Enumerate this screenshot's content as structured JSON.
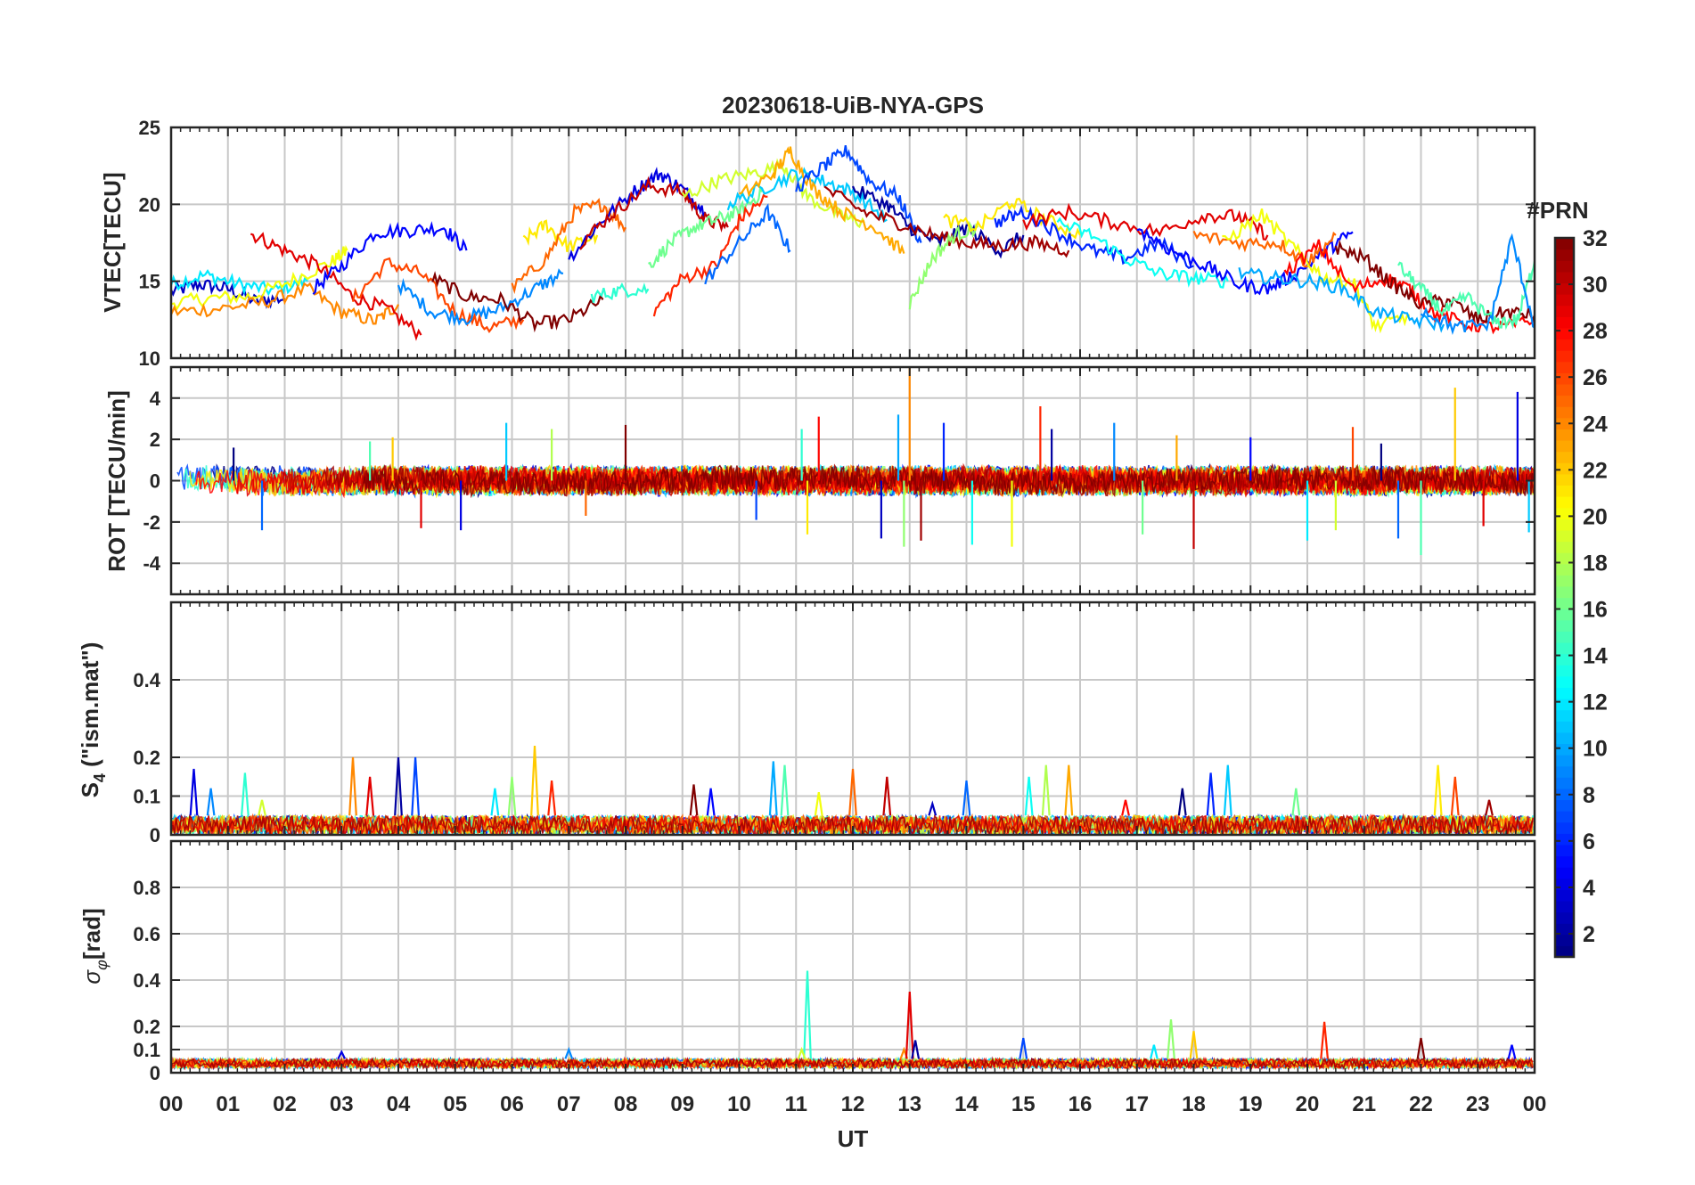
{
  "figure": {
    "title": "20230618-UiB-NYA-GPS",
    "xlabel": "UT"
  },
  "x_ticks": [
    "00",
    "01",
    "02",
    "03",
    "04",
    "05",
    "06",
    "07",
    "08",
    "09",
    "10",
    "11",
    "12",
    "13",
    "14",
    "15",
    "16",
    "17",
    "18",
    "19",
    "20",
    "21",
    "22",
    "23",
    "00"
  ],
  "colorbar": {
    "title": "#PRN",
    "range": [
      1,
      32
    ],
    "ticks": [
      2,
      4,
      6,
      8,
      10,
      12,
      14,
      16,
      18,
      20,
      22,
      24,
      26,
      28,
      30,
      32
    ],
    "colormap": "jet"
  },
  "chart_data": [
    {
      "type": "line",
      "ylabel": "VTEC[TECU]",
      "xlim": [
        0,
        24
      ],
      "ylim": [
        10,
        25
      ],
      "yticks": [
        10,
        15,
        20,
        25
      ],
      "grid": true,
      "description_series": "one line per GPS satellite (PRN), colored by PRN",
      "series": [
        {
          "prn": 3,
          "x": [
            0.0,
            0.5,
            1.0,
            1.5,
            2.0
          ],
          "y": [
            14.3,
            14.8,
            14.5,
            13.7,
            13.9
          ]
        },
        {
          "prn": 12,
          "x": [
            0.0,
            0.6,
            1.2,
            1.8,
            2.4
          ],
          "y": [
            14.8,
            15.4,
            14.8,
            14.4,
            15.0
          ]
        },
        {
          "prn": 20,
          "x": [
            0.0,
            0.7,
            1.4,
            2.1,
            2.8,
            3.1
          ],
          "y": [
            13.6,
            13.9,
            14.0,
            15.0,
            16.2,
            17.0
          ]
        },
        {
          "prn": 24,
          "x": [
            0.0,
            0.8,
            1.6,
            2.4,
            3.0,
            3.6,
            4.0
          ],
          "y": [
            13.0,
            13.2,
            13.6,
            14.5,
            13.0,
            12.4,
            13.5
          ]
        },
        {
          "prn": 29,
          "x": [
            1.4,
            2.0,
            2.6,
            3.2,
            3.8,
            4.4
          ],
          "y": [
            18.1,
            17.0,
            16.0,
            14.0,
            13.2,
            11.5
          ]
        },
        {
          "prn": 5,
          "x": [
            2.5,
            3.0,
            3.6,
            4.2,
            4.8,
            5.2
          ],
          "y": [
            14.5,
            16.0,
            18.2,
            18.3,
            18.5,
            17.0
          ]
        },
        {
          "prn": 26,
          "x": [
            3.2,
            3.8,
            4.4,
            5.0,
            5.6,
            6.2
          ],
          "y": [
            13.8,
            16.2,
            15.5,
            13.0,
            12.0,
            12.5
          ]
        },
        {
          "prn": 9,
          "x": [
            4.0,
            4.6,
            5.2,
            5.8,
            6.4,
            6.9
          ],
          "y": [
            14.8,
            13.0,
            12.6,
            13.2,
            14.5,
            15.5
          ]
        },
        {
          "prn": 32,
          "x": [
            4.6,
            5.2,
            5.8,
            6.4,
            7.0,
            7.6
          ],
          "y": [
            15.2,
            14.0,
            13.8,
            12.2,
            12.5,
            13.8
          ]
        },
        {
          "prn": 21,
          "x": [
            6.2,
            6.6,
            7.0,
            7.5
          ],
          "y": [
            17.6,
            18.7,
            17.2,
            18.0
          ]
        },
        {
          "prn": 25,
          "x": [
            6.0,
            6.6,
            7.1,
            7.6,
            8.0
          ],
          "y": [
            14.5,
            16.5,
            19.5,
            20.0,
            18.5
          ]
        },
        {
          "prn": 4,
          "x": [
            7.0,
            7.6,
            8.2,
            8.6,
            9.0,
            9.4
          ],
          "y": [
            16.5,
            19.0,
            21.0,
            22.0,
            21.0,
            19.5
          ]
        },
        {
          "prn": 30,
          "x": [
            7.2,
            7.8,
            8.4,
            9.0,
            9.4,
            9.8
          ],
          "y": [
            17.5,
            19.5,
            21.2,
            20.8,
            19.0,
            18.5
          ]
        },
        {
          "prn": 14,
          "x": [
            7.4,
            7.9,
            8.4
          ],
          "y": [
            14.0,
            14.4,
            14.5
          ]
        },
        {
          "prn": 16,
          "x": [
            8.4,
            8.8,
            9.2,
            9.6,
            10.0,
            10.4
          ],
          "y": [
            16.0,
            17.5,
            18.5,
            19.0,
            19.5,
            20.8
          ]
        },
        {
          "prn": 27,
          "x": [
            8.5,
            9.0,
            9.6,
            10.0,
            10.5
          ],
          "y": [
            13.0,
            15.2,
            16.0,
            19.0,
            20.5
          ]
        },
        {
          "prn": 19,
          "x": [
            9.0,
            9.6,
            10.2,
            10.8,
            11.2,
            11.8,
            12.2
          ],
          "y": [
            20.5,
            21.5,
            22.0,
            22.5,
            20.5,
            19.2,
            18.8
          ]
        },
        {
          "prn": 8,
          "x": [
            9.4,
            10.0,
            10.5,
            10.9
          ],
          "y": [
            15.0,
            17.5,
            19.5,
            17.0
          ]
        },
        {
          "prn": 11,
          "x": [
            9.8,
            10.4,
            11.0,
            11.5,
            12.0,
            12.6
          ],
          "y": [
            20.0,
            21.0,
            22.0,
            21.5,
            20.8,
            19.0
          ]
        },
        {
          "prn": 23,
          "x": [
            10.0,
            10.6,
            10.9,
            11.3,
            11.8,
            12.4,
            12.9
          ],
          "y": [
            20.5,
            22.0,
            23.5,
            21.0,
            19.5,
            18.5,
            16.8
          ]
        },
        {
          "prn": 7,
          "x": [
            11.0,
            11.5,
            11.9,
            12.3,
            12.8,
            13.2
          ],
          "y": [
            21.0,
            22.5,
            23.5,
            21.5,
            20.5,
            17.5
          ]
        },
        {
          "prn": 2,
          "x": [
            12.0,
            12.6,
            13.0,
            13.5,
            14.0,
            14.6,
            15.0
          ],
          "y": [
            21.0,
            20.0,
            18.5,
            17.5,
            18.5,
            17.0,
            18.0
          ]
        },
        {
          "prn": 31,
          "x": [
            11.5,
            12.2,
            12.8,
            13.4,
            14.0,
            14.6,
            15.2,
            15.8
          ],
          "y": [
            21.0,
            19.5,
            18.8,
            18.0,
            17.5,
            17.3,
            17.5,
            17.0
          ]
        },
        {
          "prn": 17,
          "x": [
            13.0,
            13.4,
            13.8,
            14.2
          ],
          "y": [
            13.5,
            16.5,
            18.0,
            18.5
          ]
        },
        {
          "prn": 21,
          "x": [
            13.6,
            14.2,
            14.8,
            15.4,
            16.0
          ],
          "y": [
            19.0,
            18.5,
            20.2,
            19.0,
            18.0
          ]
        },
        {
          "prn": 6,
          "x": [
            14.5,
            15.0,
            15.6,
            16.2,
            16.8,
            17.4,
            18.0
          ],
          "y": [
            18.8,
            19.5,
            18.2,
            17.0,
            16.5,
            17.5,
            16.0
          ]
        },
        {
          "prn": 29,
          "x": [
            15.0,
            15.8,
            16.6,
            17.4,
            18.2,
            18.8,
            19.3
          ],
          "y": [
            18.8,
            19.5,
            18.8,
            18.2,
            19.3,
            19.2,
            18.0
          ]
        },
        {
          "prn": 13,
          "x": [
            15.6,
            16.2,
            16.8,
            17.4,
            18.0,
            18.6
          ],
          "y": [
            18.8,
            18.0,
            16.5,
            15.5,
            15.2,
            15.0
          ]
        },
        {
          "prn": 5,
          "x": [
            17.0,
            17.6,
            18.2,
            18.8,
            19.3,
            19.8,
            20.4,
            20.8
          ],
          "y": [
            18.5,
            17.0,
            16.0,
            14.8,
            14.5,
            15.5,
            17.2,
            18.2
          ]
        },
        {
          "prn": 25,
          "x": [
            18.0,
            18.8,
            19.5,
            20.0,
            20.5
          ],
          "y": [
            18.0,
            17.5,
            17.5,
            16.2,
            18.0
          ]
        },
        {
          "prn": 20,
          "x": [
            18.5,
            19.2,
            19.8,
            20.3,
            20.8,
            21.2,
            21.8
          ],
          "y": [
            17.5,
            19.3,
            17.0,
            15.2,
            15.0,
            12.0,
            12.8
          ]
        },
        {
          "prn": 10,
          "x": [
            18.8,
            19.4,
            20.0,
            20.6,
            21.2,
            21.8,
            22.4
          ],
          "y": [
            15.5,
            15.2,
            15.0,
            14.6,
            13.0,
            12.5,
            12.2
          ]
        },
        {
          "prn": 28,
          "x": [
            19.6,
            20.2,
            20.8,
            21.4,
            21.8,
            22.2,
            22.8,
            23.4,
            24.0
          ],
          "y": [
            15.5,
            17.3,
            14.5,
            15.2,
            14.5,
            13.0,
            12.2,
            12.0,
            12.5
          ]
        },
        {
          "prn": 32,
          "x": [
            20.5,
            21.0,
            21.5,
            22.0,
            22.5,
            23.0,
            23.5,
            24.0
          ],
          "y": [
            17.2,
            16.5,
            14.8,
            13.5,
            13.8,
            12.5,
            13.0,
            12.8
          ]
        },
        {
          "prn": 15,
          "x": [
            21.6,
            22.0,
            22.4,
            22.8,
            23.3,
            23.7,
            24.0
          ],
          "y": [
            16.0,
            14.5,
            13.0,
            14.0,
            12.3,
            12.5,
            16.3
          ]
        },
        {
          "prn": 9,
          "x": [
            22.0,
            22.6,
            23.2,
            23.6,
            24.0
          ],
          "y": [
            13.2,
            12.0,
            12.2,
            17.8,
            12.0
          ]
        }
      ]
    },
    {
      "type": "line",
      "ylabel": "ROT [TECU/min]",
      "xlim": [
        0,
        24
      ],
      "ylim": [
        -5.5,
        5.5
      ],
      "yticks": [
        -4,
        -2,
        0,
        2,
        4
      ],
      "grid": true,
      "noise_band": [
        -1.0,
        1.0
      ],
      "spikes": [
        {
          "x": 1.1,
          "y": 1.6
        },
        {
          "x": 1.6,
          "y": -2.4
        },
        {
          "x": 3.5,
          "y": 1.9
        },
        {
          "x": 3.9,
          "y": 2.1
        },
        {
          "x": 4.4,
          "y": -2.3
        },
        {
          "x": 5.1,
          "y": -2.4
        },
        {
          "x": 5.9,
          "y": 2.8
        },
        {
          "x": 6.7,
          "y": 2.5
        },
        {
          "x": 7.3,
          "y": -1.7
        },
        {
          "x": 8.0,
          "y": 2.7
        },
        {
          "x": 10.3,
          "y": -1.9
        },
        {
          "x": 11.1,
          "y": 2.5
        },
        {
          "x": 11.2,
          "y": -2.6
        },
        {
          "x": 11.4,
          "y": 3.1
        },
        {
          "x": 12.5,
          "y": -2.8
        },
        {
          "x": 12.8,
          "y": 3.2
        },
        {
          "x": 12.9,
          "y": -3.2
        },
        {
          "x": 13.0,
          "y": 5.7
        },
        {
          "x": 13.2,
          "y": -2.9
        },
        {
          "x": 13.6,
          "y": 2.8
        },
        {
          "x": 14.1,
          "y": -3.1
        },
        {
          "x": 14.8,
          "y": -3.2
        },
        {
          "x": 15.3,
          "y": 3.6
        },
        {
          "x": 15.5,
          "y": 2.5
        },
        {
          "x": 16.6,
          "y": 2.8
        },
        {
          "x": 17.1,
          "y": -2.6
        },
        {
          "x": 17.7,
          "y": 2.2
        },
        {
          "x": 18.0,
          "y": -3.3
        },
        {
          "x": 19.0,
          "y": 2.1
        },
        {
          "x": 20.0,
          "y": -2.9
        },
        {
          "x": 20.5,
          "y": -2.4
        },
        {
          "x": 20.8,
          "y": 2.6
        },
        {
          "x": 21.3,
          "y": 1.8
        },
        {
          "x": 21.6,
          "y": -2.8
        },
        {
          "x": 22.0,
          "y": -3.6
        },
        {
          "x": 22.6,
          "y": 4.5
        },
        {
          "x": 23.1,
          "y": -2.2
        },
        {
          "x": 23.7,
          "y": 4.3
        },
        {
          "x": 23.9,
          "y": -2.5
        }
      ]
    },
    {
      "type": "line",
      "ylabel": "S4 (\"ism.mat\")",
      "ylabel_main": "S",
      "ylabel_sub": "4",
      "ylabel_rest": " (\"ism.mat\")",
      "xlim": [
        0,
        24
      ],
      "ylim": [
        0,
        0.6
      ],
      "yticks": [
        0,
        0.1,
        0.2,
        0.4
      ],
      "ytick_labels": [
        "0",
        "0.1",
        "0.2",
        "0.4"
      ],
      "grid": true,
      "baseline_band": [
        0.0,
        0.05
      ],
      "spikes": [
        {
          "x": 0.4,
          "y": 0.17
        },
        {
          "x": 0.7,
          "y": 0.12
        },
        {
          "x": 1.3,
          "y": 0.16
        },
        {
          "x": 1.6,
          "y": 0.09
        },
        {
          "x": 3.2,
          "y": 0.2
        },
        {
          "x": 3.5,
          "y": 0.15
        },
        {
          "x": 4.0,
          "y": 0.2
        },
        {
          "x": 4.3,
          "y": 0.2
        },
        {
          "x": 5.7,
          "y": 0.12
        },
        {
          "x": 6.0,
          "y": 0.15
        },
        {
          "x": 6.4,
          "y": 0.23
        },
        {
          "x": 6.7,
          "y": 0.14
        },
        {
          "x": 9.2,
          "y": 0.13
        },
        {
          "x": 9.5,
          "y": 0.12
        },
        {
          "x": 10.6,
          "y": 0.19
        },
        {
          "x": 10.8,
          "y": 0.18
        },
        {
          "x": 11.4,
          "y": 0.11
        },
        {
          "x": 12.0,
          "y": 0.17
        },
        {
          "x": 12.6,
          "y": 0.15
        },
        {
          "x": 13.4,
          "y": 0.08
        },
        {
          "x": 14.0,
          "y": 0.14
        },
        {
          "x": 15.1,
          "y": 0.15
        },
        {
          "x": 15.4,
          "y": 0.18
        },
        {
          "x": 15.8,
          "y": 0.18
        },
        {
          "x": 16.8,
          "y": 0.09
        },
        {
          "x": 17.8,
          "y": 0.12
        },
        {
          "x": 18.3,
          "y": 0.16
        },
        {
          "x": 18.6,
          "y": 0.18
        },
        {
          "x": 19.8,
          "y": 0.12
        },
        {
          "x": 22.3,
          "y": 0.18
        },
        {
          "x": 22.6,
          "y": 0.15
        },
        {
          "x": 23.2,
          "y": 0.09
        }
      ]
    },
    {
      "type": "line",
      "ylabel": "σφ[rad]",
      "ylabel_main": "σ",
      "ylabel_sub": "φ",
      "ylabel_rest": "[rad]",
      "xlim": [
        0,
        24
      ],
      "ylim": [
        0,
        1.0
      ],
      "yticks": [
        0,
        0.1,
        0.2,
        0.4,
        0.6,
        0.8
      ],
      "ytick_labels": [
        "0",
        "0.1",
        "0.2",
        "0.4",
        "0.6",
        "0.8"
      ],
      "grid": true,
      "baseline_band": [
        0.02,
        0.06
      ],
      "spikes": [
        {
          "x": 3.0,
          "y": 0.09
        },
        {
          "x": 7.0,
          "y": 0.1
        },
        {
          "x": 11.2,
          "y": 0.44
        },
        {
          "x": 11.1,
          "y": 0.1
        },
        {
          "x": 12.9,
          "y": 0.1
        },
        {
          "x": 13.0,
          "y": 0.35
        },
        {
          "x": 13.1,
          "y": 0.14
        },
        {
          "x": 15.0,
          "y": 0.15
        },
        {
          "x": 17.3,
          "y": 0.12
        },
        {
          "x": 17.6,
          "y": 0.23
        },
        {
          "x": 18.0,
          "y": 0.18
        },
        {
          "x": 20.3,
          "y": 0.22
        },
        {
          "x": 22.0,
          "y": 0.15
        },
        {
          "x": 23.6,
          "y": 0.12
        }
      ]
    }
  ]
}
